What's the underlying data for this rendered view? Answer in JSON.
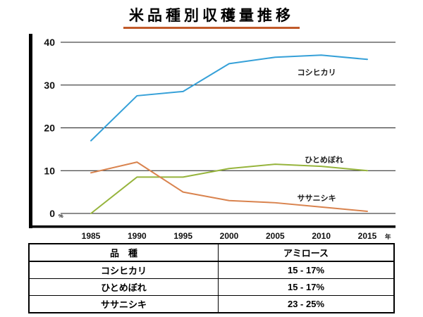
{
  "title": "米品種別収穫量推移",
  "chart_data": {
    "type": "line",
    "x": [
      1985,
      1990,
      1995,
      2000,
      2005,
      2010,
      2015
    ],
    "x_tick_labels": [
      "1985",
      "1990",
      "1995",
      "2000",
      "2005",
      "2010",
      "2015"
    ],
    "x_unit": "年",
    "y_unit": "%",
    "y_ticks": [
      0,
      10,
      20,
      30,
      40
    ],
    "ylim": [
      0,
      40
    ],
    "grid": true,
    "legend_position": "inline-labels",
    "series": [
      {
        "name": "コシヒカリ",
        "color": "#35a0d8",
        "values": [
          17,
          27.5,
          28.5,
          35,
          36.5,
          37,
          36
        ],
        "label_pos": {
          "x": 2009.5,
          "y": 33
        }
      },
      {
        "name": "ひとめぼれ",
        "color": "#96b43c",
        "values": [
          0,
          8.5,
          8.5,
          10.5,
          11.5,
          11,
          10
        ],
        "label_pos": {
          "x": 2010.3,
          "y": 12.6
        }
      },
      {
        "name": "ササニシキ",
        "color": "#d9834e",
        "values": [
          9.5,
          12,
          5,
          3,
          2.5,
          1.5,
          0.5
        ],
        "label_pos": {
          "x": 2009.5,
          "y": 3.6
        }
      }
    ]
  },
  "table": {
    "headers": [
      "品　種",
      "アミロース"
    ],
    "rows": [
      {
        "variety": "コシヒカリ",
        "amylose": "15 - 17%"
      },
      {
        "variety": "ひとめぼれ",
        "amylose": "15 - 17%"
      },
      {
        "variety": "ササニシキ",
        "amylose": "23 - 25%"
      }
    ]
  }
}
